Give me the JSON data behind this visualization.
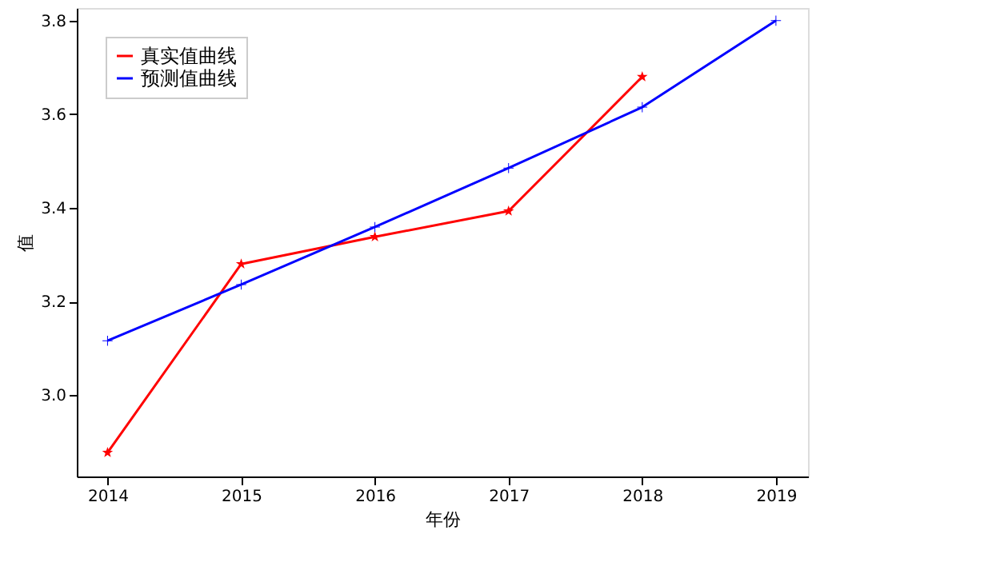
{
  "chart_data": {
    "type": "line",
    "xlabel": "年份",
    "ylabel": "值",
    "x": [
      2014,
      2015,
      2016,
      2017,
      2018,
      2019
    ],
    "series": [
      {
        "name": "真实值曲线",
        "color": "#ff0000",
        "marker": "star",
        "values": [
          2.877,
          3.28,
          3.338,
          3.393,
          3.68,
          null
        ]
      },
      {
        "name": "预测值曲线",
        "color": "#0000ff",
        "marker": "cross",
        "values": [
          3.116,
          3.236,
          3.359,
          3.485,
          3.615,
          3.8
        ]
      }
    ],
    "xlim": [
      2013.77,
      2019.24
    ],
    "xticks": [
      2014,
      2015,
      2016,
      2017,
      2018,
      2019
    ],
    "ylim": [
      2.826,
      3.827
    ],
    "yticks": [
      {
        "value": 3.0,
        "label": "3.0"
      },
      3.2,
      3.4,
      3.6,
      3.8
    ],
    "grid": false,
    "legend": "top left",
    "line_style": "solid"
  }
}
